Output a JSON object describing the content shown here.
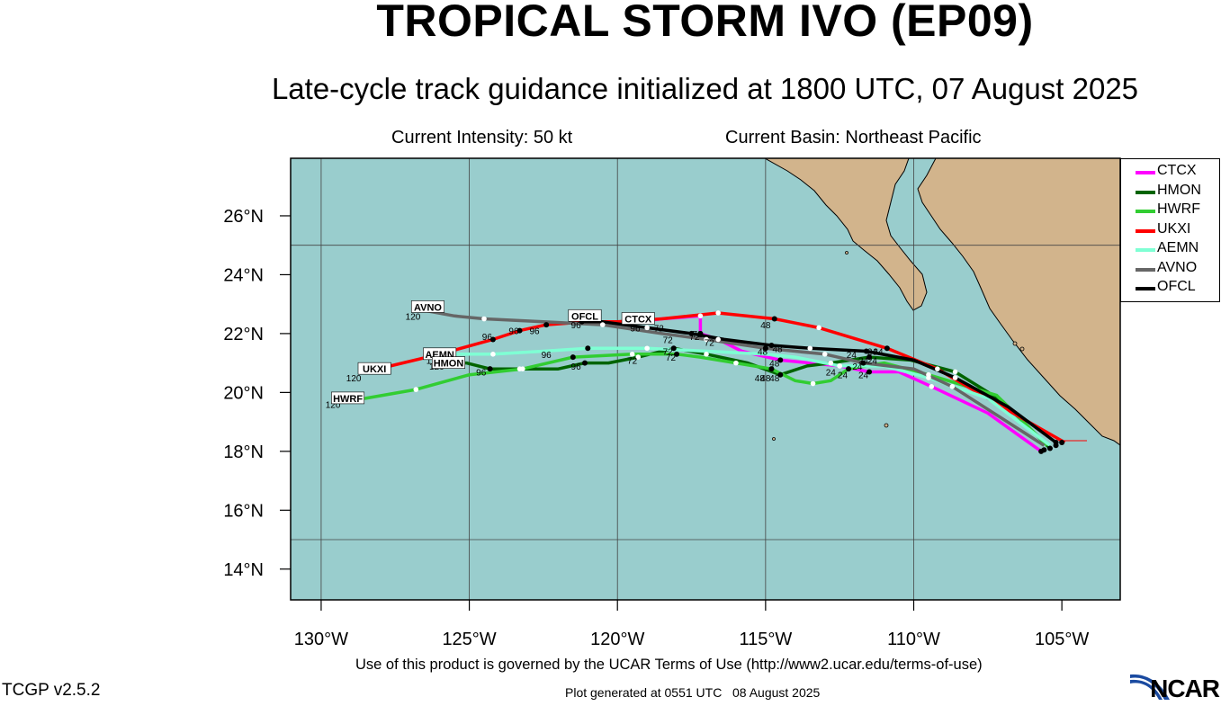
{
  "header": {
    "title": "TROPICAL STORM IVO (EP09)",
    "subtitle": "Late-cycle track guidance initialized at 1800 UTC, 07 August 2025",
    "current_intensity": "Current Intensity: 50 kt",
    "current_basin": "Current Basin: Northeast Pacific"
  },
  "footer": {
    "terms": "Use of this product is governed by the UCAR Terms of Use (http://www2.ucar.edu/terms-of-use)",
    "version": "TCGP v2.5.2",
    "generated": "Plot generated at 0551 UTC   08 August 2025",
    "logo_text": "NCAR"
  },
  "colors": {
    "ocean": "#99cdcd",
    "land": "#d2b48c",
    "CTCX": "#ff00ff",
    "HMON": "#006400",
    "HWRF": "#32cd32",
    "UKXI": "#ff0000",
    "AEMN": "#7fffd4",
    "AVNO": "#666666",
    "OFCL": "#000000"
  },
  "axes": {
    "lat_labels": [
      "14°N",
      "16°N",
      "18°N",
      "20°N",
      "22°N",
      "24°N",
      "26°N"
    ],
    "lat_values": [
      14,
      16,
      18,
      20,
      22,
      24,
      26
    ],
    "lon_labels": [
      "130°W",
      "125°W",
      "120°W",
      "115°W",
      "110°W",
      "105°W"
    ],
    "lon_values": [
      -130,
      -125,
      -120,
      -115,
      -110,
      -105
    ],
    "lon_range": [
      -131,
      -103
    ],
    "lat_range": [
      13,
      28
    ],
    "grid_lat": [
      15,
      25
    ],
    "grid_lon": [
      -130,
      -125,
      -120,
      -115,
      -110
    ]
  },
  "legend": [
    "CTCX",
    "HMON",
    "HWRF",
    "UKXI",
    "AEMN",
    "AVNO",
    "OFCL"
  ],
  "tracks": [
    {
      "model": "CTCX",
      "points": [
        [
          -105.7,
          18.0
        ],
        [
          -107.5,
          19.3
        ],
        [
          -109.4,
          20.2
        ],
        [
          -110.5,
          20.7
        ],
        [
          -111.5,
          20.7
        ],
        [
          -112.5,
          20.9
        ],
        [
          -113.5,
          21.0
        ],
        [
          -114.5,
          21.1
        ],
        [
          -115.8,
          21.4
        ],
        [
          -116.6,
          21.8
        ],
        [
          -117.2,
          22.0
        ],
        [
          -117.2,
          22.6
        ],
        [
          -118.5,
          22.5
        ],
        [
          -119.3,
          22.4
        ]
      ],
      "dots": [
        [
          -111.5,
          20.7
        ],
        [
          -114.5,
          21.1
        ],
        [
          -117.2,
          22.0
        ]
      ],
      "white": [
        [
          -109.4,
          20.2
        ],
        [
          -112.5,
          20.9
        ],
        [
          -116.6,
          21.8
        ],
        [
          -117.2,
          22.6
        ]
      ],
      "labels": [
        {
          "t": "24",
          "p": [
            -111.7,
            20.6
          ]
        },
        {
          "t": "48",
          "p": [
            -114.7,
            21.0
          ]
        },
        {
          "t": "72",
          "p": [
            -117.4,
            21.9
          ]
        }
      ]
    },
    {
      "model": "HMON",
      "points": [
        [
          -105.4,
          18.1
        ],
        [
          -107.0,
          19.7
        ],
        [
          -108.6,
          20.7
        ],
        [
          -110.1,
          21.1
        ],
        [
          -111.5,
          21.2
        ],
        [
          -112.8,
          21.0
        ],
        [
          -113.6,
          20.9
        ],
        [
          -114.5,
          20.6
        ],
        [
          -115.6,
          21.0
        ],
        [
          -117.0,
          21.3
        ],
        [
          -118.1,
          21.5
        ],
        [
          -119.3,
          21.2
        ],
        [
          -120.3,
          21.0
        ],
        [
          -121.1,
          21.0
        ],
        [
          -122.0,
          20.8
        ],
        [
          -123.3,
          20.8
        ],
        [
          -124.3,
          20.8
        ],
        [
          -125.1,
          21.0
        ],
        [
          -125.9,
          21.0
        ]
      ],
      "dots": [
        [
          -111.5,
          21.2
        ],
        [
          -114.5,
          20.6
        ],
        [
          -118.1,
          21.5
        ],
        [
          -121.1,
          21.0
        ],
        [
          -124.3,
          20.8
        ]
      ],
      "white": [
        [
          -108.6,
          20.7
        ],
        [
          -112.8,
          21.0
        ],
        [
          -117.0,
          21.3
        ],
        [
          -119.3,
          21.2
        ],
        [
          -123.3,
          20.8
        ]
      ],
      "labels": [
        {
          "t": "24",
          "p": [
            -111.7,
            21.1
          ]
        },
        {
          "t": "48",
          "p": [
            -114.7,
            20.5
          ]
        },
        {
          "t": "72",
          "p": [
            -118.3,
            21.4
          ]
        },
        {
          "t": "96",
          "p": [
            -121.4,
            20.9
          ]
        },
        {
          "t": "96",
          "p": [
            -124.6,
            20.7
          ]
        },
        {
          "t": "120",
          "p": [
            -126.1,
            20.9
          ]
        }
      ]
    },
    {
      "model": "HWRF",
      "points": [
        [
          -105.5,
          18.2
        ],
        [
          -107.2,
          19.9
        ],
        [
          -109.5,
          20.6
        ],
        [
          -111.0,
          21.0
        ],
        [
          -112.2,
          20.8
        ],
        [
          -112.8,
          20.4
        ],
        [
          -113.4,
          20.3
        ],
        [
          -114.0,
          20.4
        ],
        [
          -114.8,
          20.8
        ],
        [
          -116.0,
          21.0
        ],
        [
          -117.2,
          21.2
        ],
        [
          -118.0,
          21.3
        ],
        [
          -119.5,
          21.3
        ],
        [
          -121.5,
          21.2
        ],
        [
          -123.2,
          20.8
        ],
        [
          -125.0,
          20.6
        ],
        [
          -126.8,
          20.1
        ],
        [
          -128.5,
          19.8
        ],
        [
          -129.5,
          19.7
        ]
      ],
      "dots": [
        [
          -112.2,
          20.8
        ],
        [
          -114.8,
          20.8
        ],
        [
          -118.0,
          21.3
        ],
        [
          -121.5,
          21.2
        ]
      ],
      "white": [
        [
          -109.5,
          20.6
        ],
        [
          -113.4,
          20.3
        ],
        [
          -116.0,
          21.0
        ],
        [
          -119.5,
          21.3
        ],
        [
          -123.2,
          20.8
        ],
        [
          -126.8,
          20.1
        ]
      ],
      "labels": [
        {
          "t": "24",
          "p": [
            -112.4,
            20.6
          ]
        },
        {
          "t": "48",
          "p": [
            -115.0,
            20.5
          ]
        },
        {
          "t": "72",
          "p": [
            -118.2,
            21.2
          ]
        },
        {
          "t": "120",
          "p": [
            -129.6,
            19.6
          ]
        }
      ]
    },
    {
      "model": "UKXI",
      "points": [
        [
          -104.9,
          18.3
        ],
        [
          -107.0,
          19.5
        ],
        [
          -109.2,
          20.8
        ],
        [
          -110.9,
          21.5
        ],
        [
          -113.2,
          22.2
        ],
        [
          -114.7,
          22.5
        ],
        [
          -116.6,
          22.7
        ],
        [
          -118.5,
          22.5
        ],
        [
          -120.0,
          22.4
        ],
        [
          -121.0,
          22.4
        ],
        [
          -122.4,
          22.3
        ],
        [
          -123.3,
          22.1
        ],
        [
          -124.2,
          21.8
        ],
        [
          -126.0,
          21.3
        ],
        [
          -128.5,
          20.7
        ]
      ],
      "dots": [
        [
          -110.9,
          21.5
        ],
        [
          -114.7,
          22.5
        ],
        [
          -122.4,
          22.3
        ],
        [
          -123.3,
          22.1
        ],
        [
          -124.2,
          21.8
        ]
      ],
      "white": [
        [
          -109.2,
          20.8
        ],
        [
          -113.2,
          22.2
        ],
        [
          -116.6,
          22.7
        ]
      ],
      "labels": [
        {
          "t": "24",
          "p": [
            -111.2,
            21.4
          ]
        },
        {
          "t": "48",
          "p": [
            -115.0,
            22.3
          ]
        },
        {
          "t": "96",
          "p": [
            -122.8,
            22.1
          ]
        },
        {
          "t": "96",
          "p": [
            -124.4,
            21.9
          ]
        },
        {
          "t": "120",
          "p": [
            -128.9,
            20.5
          ]
        }
      ]
    },
    {
      "model": "AEMN",
      "points": [
        [
          -105.4,
          18.2
        ],
        [
          -107.5,
          19.8
        ],
        [
          -109.5,
          20.5
        ],
        [
          -111.0,
          20.9
        ],
        [
          -112.5,
          20.9
        ],
        [
          -114.0,
          21.2
        ],
        [
          -115.0,
          21.3
        ],
        [
          -117.0,
          21.4
        ],
        [
          -119.0,
          21.5
        ],
        [
          -121.0,
          21.5
        ],
        [
          -122.5,
          21.4
        ],
        [
          -124.2,
          21.3
        ],
        [
          -125.7,
          21.3
        ]
      ],
      "dots": [
        [
          -121.0,
          21.5
        ]
      ],
      "white": [
        [
          -109.5,
          20.5
        ],
        [
          -112.5,
          20.9
        ],
        [
          -119.0,
          21.5
        ],
        [
          -124.2,
          21.3
        ]
      ],
      "labels": [
        {
          "t": "96",
          "p": [
            -122.4,
            21.3
          ]
        },
        {
          "t": "120",
          "p": [
            -126.2,
            21.1
          ]
        }
      ]
    },
    {
      "model": "AVNO",
      "points": [
        [
          -105.6,
          18.2
        ],
        [
          -107.3,
          19.3
        ],
        [
          -108.7,
          20.2
        ],
        [
          -110.0,
          20.8
        ],
        [
          -111.7,
          21.0
        ],
        [
          -113.0,
          21.3
        ],
        [
          -115.0,
          21.5
        ],
        [
          -117.0,
          21.8
        ],
        [
          -118.5,
          22.0
        ],
        [
          -120.5,
          22.3
        ],
        [
          -122.5,
          22.4
        ],
        [
          -124.5,
          22.5
        ],
        [
          -125.5,
          22.6
        ],
        [
          -126.6,
          22.8
        ]
      ],
      "dots": [
        [
          -111.7,
          21.0
        ],
        [
          -115.0,
          21.5
        ]
      ],
      "white": [
        [
          -108.7,
          20.2
        ],
        [
          -113.0,
          21.3
        ],
        [
          -117.0,
          21.8
        ],
        [
          -120.5,
          22.3
        ],
        [
          -124.5,
          22.5
        ]
      ],
      "labels": [
        {
          "t": "24",
          "p": [
            -111.9,
            20.9
          ]
        },
        {
          "t": "48",
          "p": [
            -115.1,
            21.4
          ]
        },
        {
          "t": "120",
          "p": [
            -126.9,
            22.6
          ]
        }
      ]
    },
    {
      "model": "OFCL",
      "points": [
        [
          -105.2,
          18.3
        ],
        [
          -106.8,
          19.5
        ],
        [
          -108.6,
          20.5
        ],
        [
          -110.0,
          21.1
        ],
        [
          -111.6,
          21.4
        ],
        [
          -113.5,
          21.5
        ],
        [
          -114.8,
          21.6
        ],
        [
          -116.4,
          21.8
        ],
        [
          -117.5,
          22.0
        ],
        [
          -119.0,
          22.2
        ],
        [
          -120.5,
          22.4
        ],
        [
          -121.2,
          22.4
        ]
      ],
      "dots": [
        [
          -105.2,
          18.3
        ],
        [
          -111.6,
          21.4
        ],
        [
          -114.8,
          21.6
        ],
        [
          -117.5,
          22.0
        ],
        [
          -121.2,
          22.4
        ]
      ],
      "white": [
        [
          -108.6,
          20.5
        ],
        [
          -113.5,
          21.5
        ],
        [
          -119.0,
          22.2
        ]
      ],
      "labels": [
        {
          "t": "24",
          "p": [
            -111.4,
            21.4
          ]
        },
        {
          "t": "48",
          "p": [
            -114.6,
            21.5
          ]
        },
        {
          "t": "72",
          "p": [
            -117.3,
            22.0
          ]
        },
        {
          "t": "96",
          "p": [
            -121.4,
            22.3
          ]
        },
        {
          "t": "96",
          "p": [
            -119.4,
            22.2
          ]
        },
        {
          "t": "72",
          "p": [
            -118.6,
            22.2
          ]
        }
      ]
    }
  ],
  "track_tags": [
    {
      "t": "AVNO",
      "p": [
        -126.4,
        22.9
      ]
    },
    {
      "t": "AEMN",
      "p": [
        -126.0,
        21.3
      ]
    },
    {
      "t": "HMON",
      "p": [
        -125.7,
        21.0
      ]
    },
    {
      "t": "UKXI",
      "p": [
        -128.2,
        20.8
      ]
    },
    {
      "t": "HWRF",
      "p": [
        -129.1,
        19.8
      ]
    },
    {
      "t": "OFCL",
      "p": [
        -121.1,
        22.6
      ]
    },
    {
      "t": "CTCX",
      "p": [
        -119.3,
        22.5
      ]
    }
  ],
  "extra_labels": [
    {
      "t": "72",
      "p": [
        -119.5,
        21.1
      ]
    },
    {
      "t": "72",
      "p": [
        -118.3,
        21.8
      ]
    },
    {
      "t": "72",
      "p": [
        -116.9,
        21.7
      ]
    },
    {
      "t": "96",
      "p": [
        -123.5,
        22.1
      ]
    },
    {
      "t": "48",
      "p": [
        -115.2,
        20.5
      ]
    },
    {
      "t": "24",
      "p": [
        -112.8,
        20.7
      ]
    },
    {
      "t": "24",
      "p": [
        -111.4,
        21.1
      ]
    },
    {
      "t": "24",
      "p": [
        -112.1,
        21.3
      ]
    }
  ]
}
